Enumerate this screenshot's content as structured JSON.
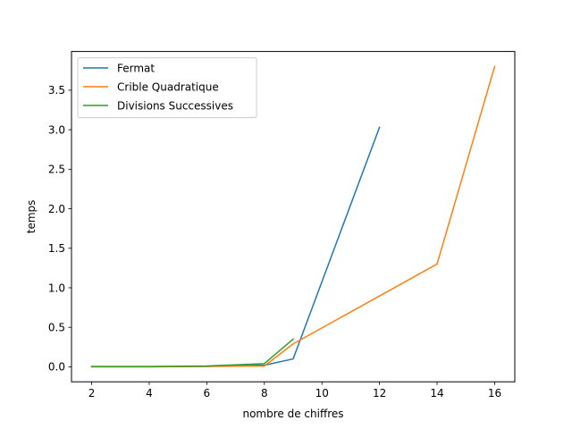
{
  "chart_data": {
    "type": "line",
    "xlabel": "nombre de chiffres",
    "ylabel": "temps",
    "xlim": [
      1.3,
      16.7
    ],
    "ylim": [
      -0.19,
      3.99
    ],
    "xticks": [
      2,
      4,
      6,
      8,
      10,
      12,
      14,
      16
    ],
    "xtick_labels": [
      "2",
      "4",
      "6",
      "8",
      "10",
      "12",
      "14",
      "16"
    ],
    "yticks": [
      0.0,
      0.5,
      1.0,
      1.5,
      2.0,
      2.5,
      3.0,
      3.5
    ],
    "ytick_labels": [
      "0.0",
      "0.5",
      "1.0",
      "1.5",
      "2.0",
      "2.5",
      "3.0",
      "3.5"
    ],
    "grid": false,
    "legend_position": "top-left",
    "series": [
      {
        "name": "Fermat",
        "color": "#1f77b4",
        "x": [
          2,
          4,
          6,
          8,
          9,
          12
        ],
        "y": [
          0.0,
          0.0,
          0.005,
          0.02,
          0.1,
          3.03
        ]
      },
      {
        "name": "Crible Quadratique",
        "color": "#ff7f0e",
        "x": [
          2,
          4,
          6,
          8,
          9,
          14,
          16
        ],
        "y": [
          0.0,
          0.0,
          0.005,
          0.01,
          0.29,
          1.3,
          3.8
        ]
      },
      {
        "name": "Divisions Successives",
        "color": "#2ca02c",
        "x": [
          2,
          4,
          6,
          8,
          9
        ],
        "y": [
          0.005,
          0.005,
          0.01,
          0.04,
          0.35
        ]
      }
    ]
  }
}
